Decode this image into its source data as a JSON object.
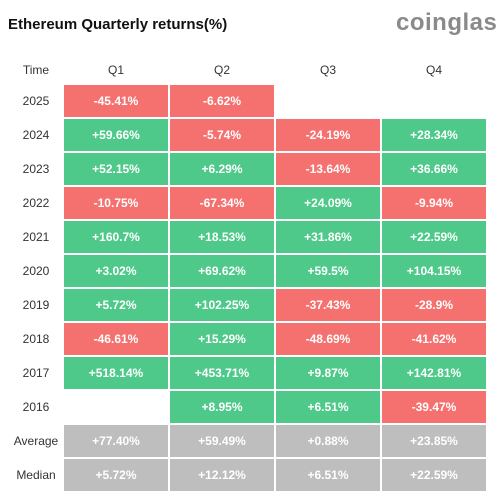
{
  "title": "Ethereum Quarterly returns(%)",
  "brand": "coinglass",
  "colors": {
    "positive": "#4ec98a",
    "negative": "#f4716f",
    "summary": "#bebebe"
  },
  "chart_data": {
    "type": "table",
    "title": "Ethereum Quarterly returns(%)",
    "columns": [
      "Time",
      "Q1",
      "Q2",
      "Q3",
      "Q4"
    ],
    "rows": [
      {
        "label": "2025",
        "kind": "year",
        "values": [
          "-45.41%",
          "-6.62%",
          "",
          ""
        ]
      },
      {
        "label": "2024",
        "kind": "year",
        "values": [
          "+59.66%",
          "-5.74%",
          "-24.19%",
          "+28.34%"
        ]
      },
      {
        "label": "2023",
        "kind": "year",
        "values": [
          "+52.15%",
          "+6.29%",
          "-13.64%",
          "+36.66%"
        ]
      },
      {
        "label": "2022",
        "kind": "year",
        "values": [
          "-10.75%",
          "-67.34%",
          "+24.09%",
          "-9.94%"
        ]
      },
      {
        "label": "2021",
        "kind": "year",
        "values": [
          "+160.7%",
          "+18.53%",
          "+31.86%",
          "+22.59%"
        ]
      },
      {
        "label": "2020",
        "kind": "year",
        "values": [
          "+3.02%",
          "+69.62%",
          "+59.5%",
          "+104.15%"
        ]
      },
      {
        "label": "2019",
        "kind": "year",
        "values": [
          "+5.72%",
          "+102.25%",
          "-37.43%",
          "-28.9%"
        ]
      },
      {
        "label": "2018",
        "kind": "year",
        "values": [
          "-46.61%",
          "+15.29%",
          "-48.69%",
          "-41.62%"
        ]
      },
      {
        "label": "2017",
        "kind": "year",
        "values": [
          "+518.14%",
          "+453.71%",
          "+9.87%",
          "+142.81%"
        ]
      },
      {
        "label": "2016",
        "kind": "year",
        "values": [
          "",
          "+8.95%",
          "+6.51%",
          "-39.47%"
        ]
      },
      {
        "label": "Average",
        "kind": "summary",
        "values": [
          "+77.40%",
          "+59.49%",
          "+0.88%",
          "+23.85%"
        ]
      },
      {
        "label": "Median",
        "kind": "summary",
        "values": [
          "+5.72%",
          "+12.12%",
          "+6.51%",
          "+22.59%"
        ]
      }
    ]
  }
}
